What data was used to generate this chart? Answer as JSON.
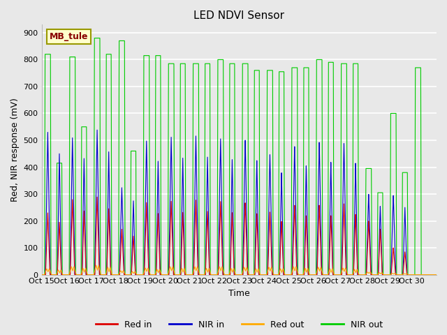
{
  "title": "LED NDVI Sensor",
  "xlabel": "Time",
  "ylabel": "Red, NIR response (mV)",
  "ylim": [
    0,
    930
  ],
  "yticks": [
    0,
    100,
    200,
    300,
    400,
    500,
    600,
    700,
    800,
    900
  ],
  "plot_bg_color": "#e8e8e8",
  "grid_color": "#ffffff",
  "label_box_text": "MB_tule",
  "label_box_facecolor": "#ffffcc",
  "label_box_edgecolor": "#999900",
  "label_box_textcolor": "#880000",
  "x_tick_labels": [
    "Oct 15",
    "Oct 16",
    "Oct 17",
    "Oct 18",
    "Oct 19",
    "Oct 20",
    "Oct 21",
    "Oct 22",
    "Oct 23",
    "Oct 24",
    "Oct 25",
    "Oct 26",
    "Oct 27",
    "Oct 28",
    "Oct 29",
    "Oct 30"
  ],
  "series": {
    "red_in": {
      "color": "#dd0000",
      "label": "Red in"
    },
    "nir_in": {
      "color": "#0000cc",
      "label": "NIR in"
    },
    "red_out": {
      "color": "#ffaa00",
      "label": "Red out"
    },
    "nir_out": {
      "color": "#00cc00",
      "label": "NIR out"
    }
  },
  "spikes": [
    {
      "day": 0,
      "red_in": 230,
      "nir_in": 530,
      "red_out": 22,
      "nir_out": 820,
      "nir_out2": 415
    },
    {
      "day": 1,
      "red_in": 280,
      "nir_in": 510,
      "red_out": 30,
      "nir_out": 810,
      "nir_out2": 550
    },
    {
      "day": 2,
      "red_in": 290,
      "nir_in": 540,
      "red_out": 35,
      "nir_out": 880,
      "nir_out2": 820
    },
    {
      "day": 3,
      "red_in": 170,
      "nir_in": 325,
      "red_out": 15,
      "nir_out": 870,
      "nir_out2": 460
    },
    {
      "day": 4,
      "red_in": 270,
      "nir_in": 500,
      "red_out": 25,
      "nir_out": 815,
      "nir_out2": 815
    },
    {
      "day": 5,
      "red_in": 275,
      "nir_in": 515,
      "red_out": 30,
      "nir_out": 785,
      "nir_out2": 785
    },
    {
      "day": 6,
      "red_in": 280,
      "nir_in": 520,
      "red_out": 30,
      "nir_out": 785,
      "nir_out2": 785
    },
    {
      "day": 7,
      "red_in": 275,
      "nir_in": 510,
      "red_out": 30,
      "nir_out": 800,
      "nir_out2": 785
    },
    {
      "day": 8,
      "red_in": 270,
      "nir_in": 505,
      "red_out": 28,
      "nir_out": 785,
      "nir_out2": 760
    },
    {
      "day": 9,
      "red_in": 235,
      "nir_in": 450,
      "red_out": 28,
      "nir_out": 760,
      "nir_out2": 755
    },
    {
      "day": 10,
      "red_in": 260,
      "nir_in": 480,
      "red_out": 30,
      "nir_out": 770,
      "nir_out2": 770
    },
    {
      "day": 11,
      "red_in": 260,
      "nir_in": 495,
      "red_out": 28,
      "nir_out": 800,
      "nir_out2": 790
    },
    {
      "day": 12,
      "red_in": 265,
      "nir_in": 490,
      "red_out": 25,
      "nir_out": 785,
      "nir_out2": 785
    },
    {
      "day": 13,
      "red_in": 200,
      "nir_in": 300,
      "red_out": 10,
      "nir_out": 395,
      "nir_out2": 305
    },
    {
      "day": 14,
      "red_in": 100,
      "nir_in": 295,
      "red_out": 5,
      "nir_out": 600,
      "nir_out2": 380
    },
    {
      "day": 15,
      "red_in": 0,
      "nir_in": 0,
      "red_out": 0,
      "nir_out": 770,
      "nir_out2": 0
    }
  ]
}
